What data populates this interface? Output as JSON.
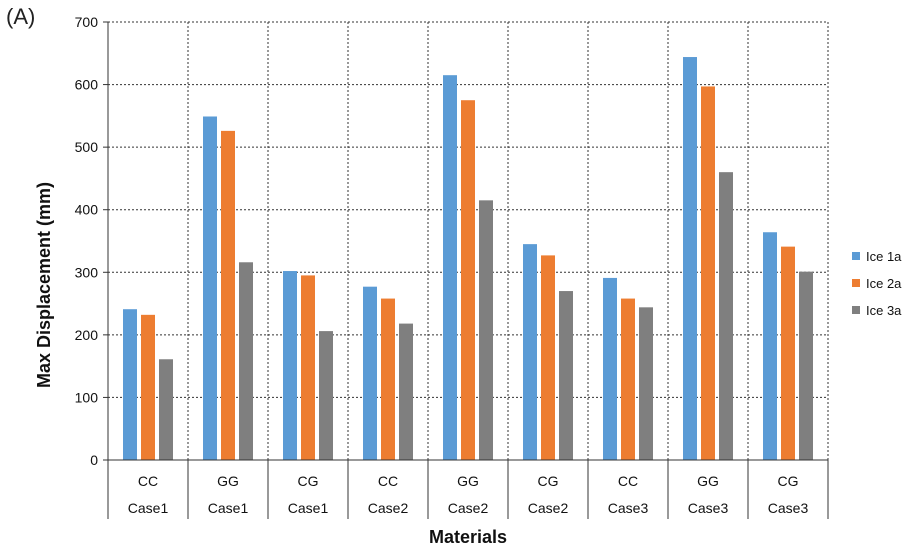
{
  "panel_label": "(A)",
  "chart_data": {
    "type": "bar",
    "xlabel": "Materials",
    "ylabel": "Max Displacement (mm)",
    "ylim": [
      0,
      700
    ],
    "yticks": [
      0,
      100,
      200,
      300,
      400,
      500,
      600,
      700
    ],
    "grid": true,
    "legend_position": "right",
    "categories": [
      {
        "material": "CC",
        "case": "Case1"
      },
      {
        "material": "GG",
        "case": "Case1"
      },
      {
        "material": "CG",
        "case": "Case1"
      },
      {
        "material": "CC",
        "case": "Case2"
      },
      {
        "material": "GG",
        "case": "Case2"
      },
      {
        "material": "CG",
        "case": "Case2"
      },
      {
        "material": "CC",
        "case": "Case3"
      },
      {
        "material": "GG",
        "case": "Case3"
      },
      {
        "material": "CG",
        "case": "Case3"
      }
    ],
    "series": [
      {
        "name": "Ice 1a",
        "color": "#5b9bd5",
        "values": [
          241,
          549,
          302,
          277,
          615,
          345,
          291,
          644,
          364
        ]
      },
      {
        "name": "Ice 2a",
        "color": "#ed7d31",
        "values": [
          232,
          526,
          295,
          258,
          575,
          327,
          258,
          597,
          341
        ]
      },
      {
        "name": "Ice 3a",
        "color": "#7f7f7f",
        "values": [
          161,
          316,
          206,
          218,
          415,
          270,
          244,
          460,
          301
        ]
      }
    ]
  }
}
